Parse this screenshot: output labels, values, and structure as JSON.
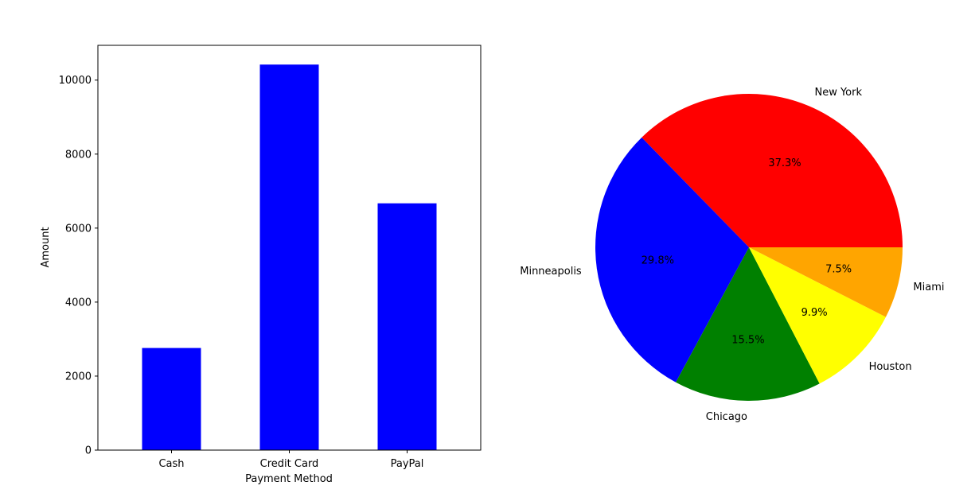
{
  "chart_data": [
    {
      "type": "bar",
      "categories": [
        "Cash",
        "Credit Card",
        "PayPal"
      ],
      "values": [
        2760,
        10420,
        6670
      ],
      "xlabel": "Payment Method",
      "ylabel": "Amount",
      "ylim": [
        0,
        10940
      ],
      "yticks": [
        0,
        2000,
        4000,
        6000,
        8000,
        10000
      ],
      "bar_color": "#0000ff",
      "grid": false
    },
    {
      "type": "pie",
      "start_angle": 0,
      "direction": "counterclockwise",
      "slices": [
        {
          "label": "New York",
          "value": 37.3,
          "pct_label": "37.3%",
          "color": "#ff0000"
        },
        {
          "label": "Minneapolis",
          "value": 29.8,
          "pct_label": "29.8%",
          "color": "#0000ff"
        },
        {
          "label": "Chicago",
          "value": 15.5,
          "pct_label": "15.5%",
          "color": "#008000"
        },
        {
          "label": "Houston",
          "value": 9.9,
          "pct_label": "9.9%",
          "color": "#ffff00"
        },
        {
          "label": "Miami",
          "value": 7.5,
          "pct_label": "7.5%",
          "color": "#ffa500"
        }
      ]
    }
  ]
}
